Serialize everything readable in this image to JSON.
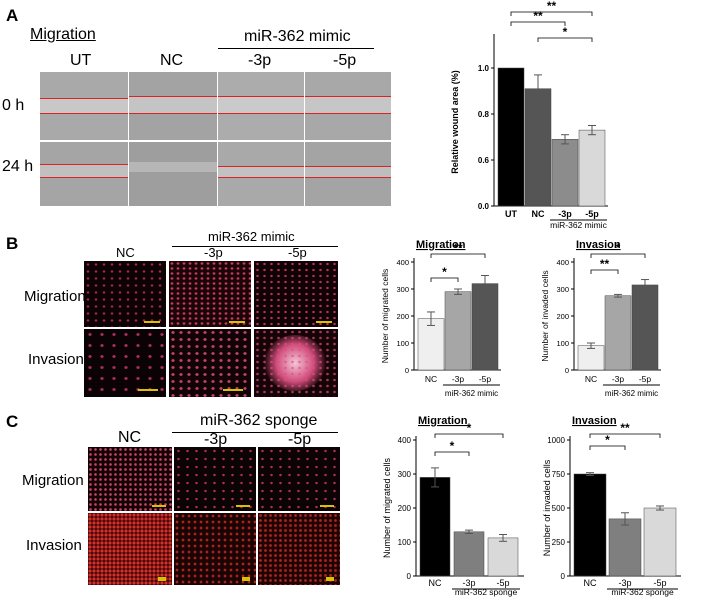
{
  "panels": {
    "A": {
      "letter": "A",
      "title": "Migration",
      "group_label": "miR-362 mimic",
      "col_labels": [
        "UT",
        "NC",
        "-3p",
        "-5p"
      ],
      "row_labels": [
        "0 h",
        "24 h"
      ]
    },
    "B": {
      "letter": "B",
      "group_label": "miR-362 mimic",
      "col_labels": [
        "NC",
        "-3p",
        "-5p"
      ],
      "row_labels": [
        "Migration",
        "Invasion"
      ]
    },
    "C": {
      "letter": "C",
      "group_label": "miR-362 sponge",
      "col_labels": [
        "NC",
        "-3p",
        "-5p"
      ],
      "row_labels": [
        "Migration",
        "Invasion"
      ]
    }
  },
  "chart_data": [
    {
      "id": "A",
      "type": "bar",
      "title": "",
      "ylabel": "Relative wound area (%)",
      "categories": [
        "UT",
        "NC",
        "-3p",
        "-5p"
      ],
      "values": [
        1.0,
        0.91,
        0.69,
        0.73
      ],
      "errors": [
        0,
        0.06,
        0.02,
        0.02
      ],
      "colors": [
        "#000000",
        "#555555",
        "#8c8c8c",
        "#d9d9d9"
      ],
      "ylim": [
        0,
        1.0
      ],
      "yticks": [
        "0.0",
        "0.6",
        "0.8",
        "1.0"
      ],
      "group_label": "miR-362 mimic",
      "significance": [
        "**",
        "**",
        "*"
      ]
    },
    {
      "id": "B1",
      "type": "bar",
      "title": "Migration",
      "ylabel": "Number of migrated cells",
      "categories": [
        "NC",
        "-3p",
        "-5p"
      ],
      "values": [
        190,
        290,
        320
      ],
      "errors": [
        25,
        10,
        30
      ],
      "colors": [
        "#efefef",
        "#a6a6a6",
        "#555555"
      ],
      "ylim": [
        0,
        400
      ],
      "yticks": [
        "0",
        "100",
        "200",
        "300",
        "400"
      ],
      "group_label": "miR-362 mimic",
      "significance": [
        "*",
        "**"
      ]
    },
    {
      "id": "B2",
      "type": "bar",
      "title": "Invasion",
      "ylabel": "Number of invaded cells",
      "categories": [
        "NC",
        "-3p",
        "-5p"
      ],
      "values": [
        90,
        275,
        315
      ],
      "errors": [
        10,
        5,
        20
      ],
      "colors": [
        "#efefef",
        "#a6a6a6",
        "#555555"
      ],
      "ylim": [
        0,
        400
      ],
      "yticks": [
        "0",
        "100",
        "200",
        "300",
        "400"
      ],
      "group_label": "miR-362 mimic",
      "significance": [
        "**",
        "*"
      ]
    },
    {
      "id": "C1",
      "type": "bar",
      "title": "Migration",
      "ylabel": "Number of migrated cells",
      "categories": [
        "NC",
        "-3p",
        "-5p"
      ],
      "values": [
        290,
        130,
        112
      ],
      "errors": [
        28,
        5,
        10
      ],
      "colors": [
        "#000000",
        "#7f7f7f",
        "#d9d9d9"
      ],
      "ylim": [
        0,
        400
      ],
      "yticks": [
        "0",
        "100",
        "200",
        "300",
        "400"
      ],
      "group_label": "miR-362 sponge",
      "significance": [
        "*",
        "*"
      ]
    },
    {
      "id": "C2",
      "type": "bar",
      "title": "Invasion",
      "ylabel": "Number of invaded cells",
      "categories": [
        "NC",
        "-3p",
        "-5p"
      ],
      "values": [
        750,
        420,
        500
      ],
      "errors": [
        10,
        45,
        15
      ],
      "colors": [
        "#000000",
        "#7f7f7f",
        "#d9d9d9"
      ],
      "ylim": [
        0,
        1000
      ],
      "yticks": [
        "0",
        "250",
        "500",
        "750",
        "1000"
      ],
      "group_label": "miR-362 sponge",
      "significance": [
        "*",
        "**"
      ]
    }
  ]
}
